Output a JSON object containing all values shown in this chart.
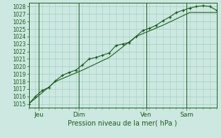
{
  "background_color": "#cce8e0",
  "grid_color": "#9ecfc4",
  "line_color": "#1a5c1a",
  "marker_color": "#1a5c1a",
  "xlabel": "Pression niveau de la mer( hPa )",
  "ylim": [
    1014.5,
    1028.5
  ],
  "xlim": [
    0,
    336
  ],
  "ytick_values": [
    1015,
    1016,
    1017,
    1018,
    1019,
    1020,
    1021,
    1022,
    1023,
    1024,
    1025,
    1026,
    1027,
    1028
  ],
  "day_labels": [
    "Jeu",
    "Dim",
    "Ven",
    "Sam"
  ],
  "day_positions": [
    18,
    90,
    210,
    282
  ],
  "minor_xtick_step": 12,
  "series1_x": [
    0,
    12,
    24,
    36,
    48,
    60,
    72,
    84,
    96,
    108,
    120,
    132,
    144,
    156,
    168,
    180,
    192,
    204,
    216,
    228,
    240,
    252,
    264,
    276,
    288,
    300,
    312,
    324,
    336
  ],
  "series1_y": [
    1015.0,
    1016.0,
    1016.8,
    1017.2,
    1018.1,
    1018.8,
    1019.2,
    1019.5,
    1020.2,
    1021.0,
    1021.2,
    1021.5,
    1021.8,
    1022.8,
    1023.0,
    1023.2,
    1024.0,
    1024.8,
    1025.1,
    1025.5,
    1026.1,
    1026.6,
    1027.2,
    1027.5,
    1027.8,
    1028.0,
    1028.1,
    1028.0,
    1027.5
  ],
  "series2_x": [
    0,
    48,
    96,
    144,
    192,
    240,
    288,
    336
  ],
  "series2_y": [
    1015.0,
    1018.0,
    1019.5,
    1021.2,
    1024.0,
    1025.5,
    1027.2,
    1027.2
  ]
}
